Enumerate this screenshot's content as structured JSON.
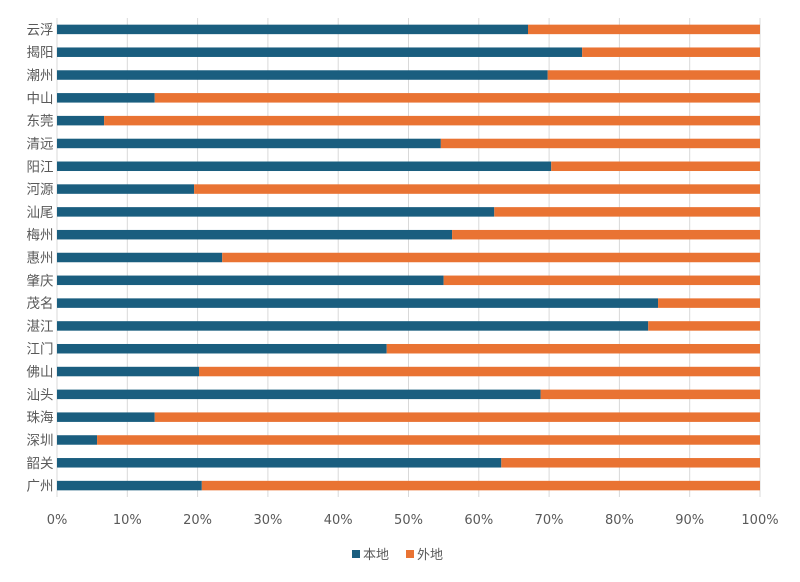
{
  "chart_data": {
    "type": "bar",
    "orientation": "horizontal",
    "stacked": "percent",
    "title": "",
    "xlabel": "",
    "ylabel": "",
    "xlim": [
      0,
      100
    ],
    "x_ticks": [
      "0%",
      "10%",
      "20%",
      "30%",
      "40%",
      "50%",
      "60%",
      "70%",
      "80%",
      "90%",
      "100%"
    ],
    "grid": true,
    "legend_position": "bottom",
    "categories": [
      "云浮",
      "揭阳",
      "潮州",
      "中山",
      "东莞",
      "清远",
      "阳江",
      "河源",
      "汕尾",
      "梅州",
      "惠州",
      "肇庆",
      "茂名",
      "湛江",
      "江门",
      "佛山",
      "汕头",
      "珠海",
      "深圳",
      "韶关",
      "广州"
    ],
    "series": [
      {
        "name": "本地",
        "color": "#1a5e7f",
        "values": [
          67.0,
          74.7,
          69.8,
          13.9,
          6.7,
          54.6,
          70.3,
          19.5,
          62.2,
          56.2,
          23.5,
          55.0,
          85.5,
          84.1,
          46.9,
          20.2,
          68.8,
          13.9,
          5.7,
          63.2,
          20.6
        ]
      },
      {
        "name": "外地",
        "color": "#e97333",
        "values": [
          33.0,
          25.3,
          30.2,
          86.1,
          93.3,
          45.4,
          29.7,
          80.5,
          37.8,
          43.8,
          76.5,
          45.0,
          14.5,
          15.9,
          53.1,
          79.8,
          31.2,
          86.1,
          94.3,
          36.8,
          79.4
        ]
      }
    ]
  }
}
